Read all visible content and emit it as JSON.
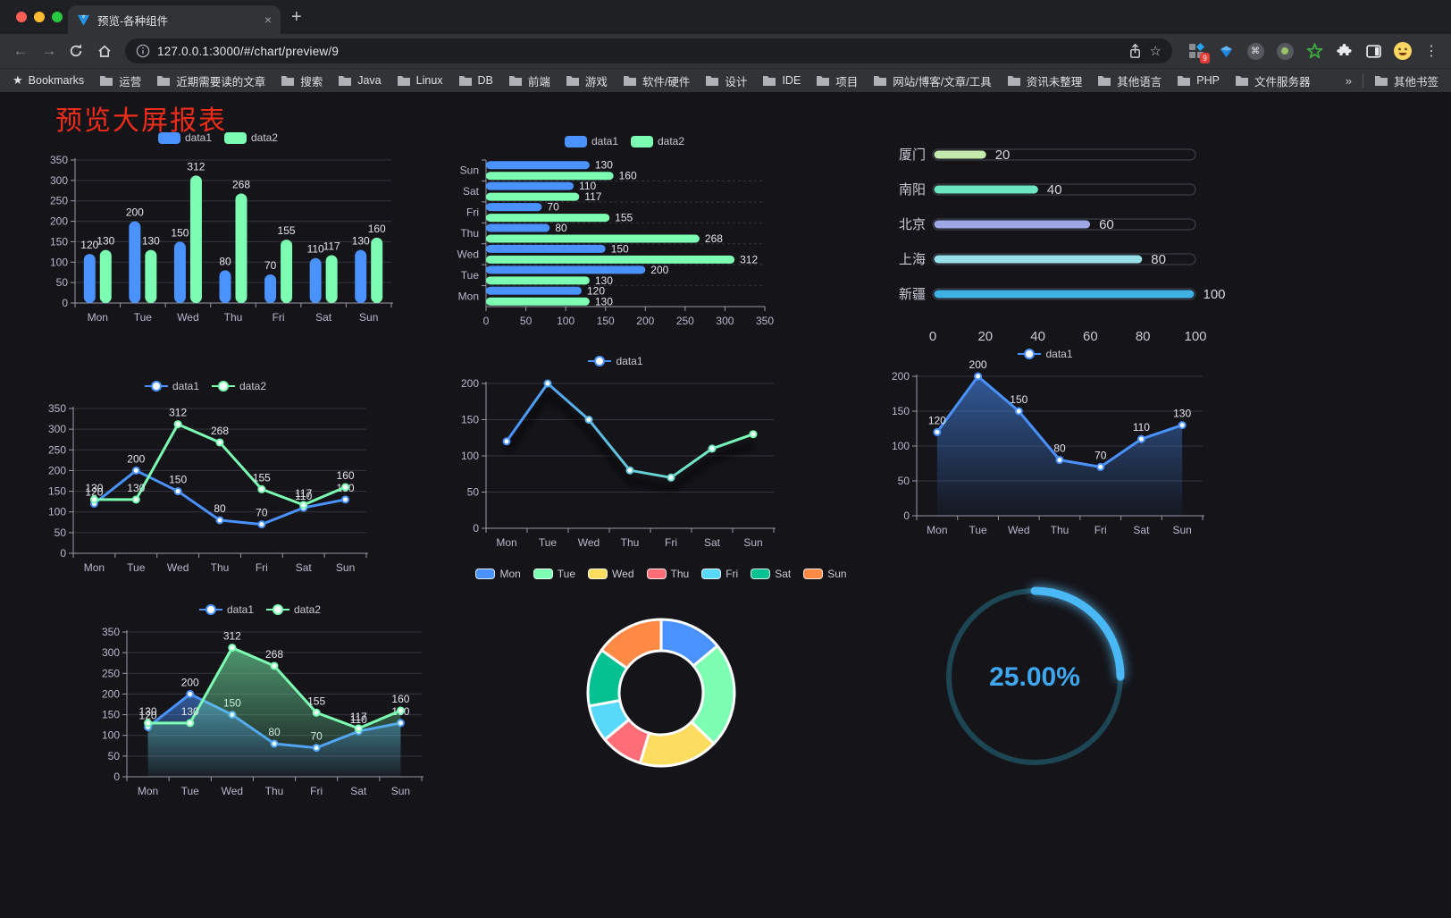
{
  "browser": {
    "tab_title": "预览-各种组件",
    "url": "127.0.0.1:3000/#/chart/preview/9",
    "extension_badge": "9",
    "icons": {
      "back": "←",
      "forward": "→",
      "close": "×",
      "new_tab": "+",
      "star": "☆",
      "bookmarks_star": "★",
      "menu": "⋮",
      "command": "⌘"
    },
    "bookmarks_bar": {
      "root_label": "Bookmarks",
      "folders": [
        "运营",
        "近期需要读的文章",
        "搜索",
        "Java",
        "Linux",
        "DB",
        "前端",
        "游戏",
        "软件/硬件",
        "设计",
        "IDE",
        "项目",
        "网站/博客/文章/工具",
        "资讯未整理",
        "其他语言",
        "PHP",
        "文件服务器"
      ],
      "overflow": "»",
      "other": "其他书签"
    }
  },
  "page": {
    "title": "预览大屏报表",
    "title_color": "#ef2c1a"
  },
  "chart_data": [
    {
      "id": "grouped-bar",
      "type": "bar",
      "categories": [
        "Mon",
        "Tue",
        "Wed",
        "Thu",
        "Fri",
        "Sat",
        "Sun"
      ],
      "series": [
        {
          "name": "data1",
          "color": "#4992ff",
          "values": [
            120,
            200,
            150,
            80,
            70,
            110,
            130
          ]
        },
        {
          "name": "data2",
          "color": "#7cffb2",
          "values": [
            130,
            130,
            312,
            268,
            155,
            117,
            160
          ]
        }
      ],
      "ylim": [
        0,
        350
      ],
      "ystep": 50,
      "grid": true,
      "legend_position": "top"
    },
    {
      "id": "horizontal-bar",
      "type": "hbar",
      "categories": [
        "Mon",
        "Tue",
        "Wed",
        "Thu",
        "Fri",
        "Sat",
        "Sun"
      ],
      "series": [
        {
          "name": "data1",
          "color": "#4992ff",
          "values": [
            120,
            200,
            150,
            80,
            70,
            110,
            130
          ]
        },
        {
          "name": "data2",
          "color": "#7cffb2",
          "values": [
            130,
            130,
            312,
            268,
            155,
            117,
            160
          ]
        }
      ],
      "xlim": [
        0,
        350
      ],
      "xstep": 50,
      "legend_position": "top"
    },
    {
      "id": "city-progress",
      "type": "progress",
      "items": [
        {
          "label": "厦门",
          "value": 20,
          "color": "#c4ebad"
        },
        {
          "label": "南阳",
          "value": 40,
          "color": "#6be6c1"
        },
        {
          "label": "北京",
          "value": 60,
          "color": "#a0a7e6"
        },
        {
          "label": "上海",
          "value": 80,
          "color": "#96dee8"
        },
        {
          "label": "新疆",
          "value": 100,
          "color": "#3fb1e3"
        }
      ],
      "xlim": [
        0,
        100
      ],
      "xticks": [
        0,
        20,
        40,
        60,
        80,
        100
      ]
    },
    {
      "id": "line-two-series",
      "type": "line",
      "labels": true,
      "categories": [
        "Mon",
        "Tue",
        "Wed",
        "Thu",
        "Fri",
        "Sat",
        "Sun"
      ],
      "series": [
        {
          "name": "data1",
          "color": "#4992ff",
          "values": [
            120,
            200,
            150,
            80,
            70,
            110,
            130
          ]
        },
        {
          "name": "data2",
          "color": "#7cffb2",
          "values": [
            130,
            130,
            312,
            268,
            155,
            117,
            160
          ]
        }
      ],
      "ylim": [
        0,
        350
      ],
      "ystep": 50,
      "legend_position": "top"
    },
    {
      "id": "line-gradient",
      "type": "line",
      "labels": false,
      "shadow": true,
      "categories": [
        "Mon",
        "Tue",
        "Wed",
        "Thu",
        "Fri",
        "Sat",
        "Sun"
      ],
      "series": [
        {
          "name": "data1",
          "gradient": [
            "#4992ff",
            "#7cffb2"
          ],
          "values": [
            120,
            200,
            150,
            80,
            70,
            110,
            130
          ]
        }
      ],
      "ylim": [
        0,
        200
      ],
      "ystep": 50,
      "legend_position": "top"
    },
    {
      "id": "area-single",
      "type": "line",
      "labels": true,
      "categories": [
        "Mon",
        "Tue",
        "Wed",
        "Thu",
        "Fri",
        "Sat",
        "Sun"
      ],
      "series": [
        {
          "name": "data1",
          "color": "#4992ff",
          "area": true,
          "values": [
            120,
            200,
            150,
            80,
            70,
            110,
            130
          ]
        }
      ],
      "ylim": [
        0,
        200
      ],
      "ystep": 50,
      "legend_position": "top"
    },
    {
      "id": "area-two-series",
      "type": "line",
      "labels": true,
      "categories": [
        "Mon",
        "Tue",
        "Wed",
        "Thu",
        "Fri",
        "Sat",
        "Sun"
      ],
      "series": [
        {
          "name": "data1",
          "color": "#4992ff",
          "area": true,
          "values": [
            120,
            200,
            150,
            80,
            70,
            110,
            130
          ]
        },
        {
          "name": "data2",
          "color": "#7cffb2",
          "area": true,
          "values": [
            130,
            130,
            312,
            268,
            155,
            117,
            160
          ]
        }
      ],
      "ylim": [
        0,
        350
      ],
      "ystep": 50,
      "legend_position": "top"
    },
    {
      "id": "weekday-donut",
      "type": "pie",
      "categories": [
        "Mon",
        "Tue",
        "Wed",
        "Thu",
        "Fri",
        "Sat",
        "Sun"
      ],
      "values": [
        120,
        200,
        150,
        80,
        70,
        110,
        130
      ],
      "colors": [
        "#4992ff",
        "#7cffb2",
        "#fddd60",
        "#ff6e76",
        "#58d9f9",
        "#05c091",
        "#ff8a45"
      ],
      "legend_position": "top"
    },
    {
      "id": "percent-gauge",
      "type": "gauge",
      "value": 25,
      "label": "25.00%",
      "color": "#49b8f5",
      "track_color": "#1c4653",
      "text_color": "#3fa7f0"
    }
  ]
}
